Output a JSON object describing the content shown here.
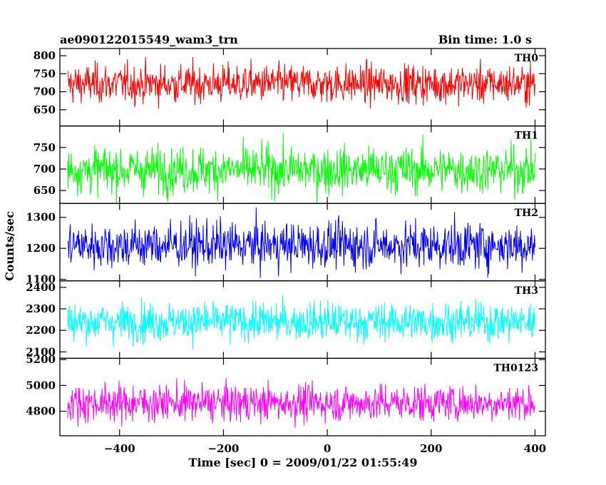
{
  "header": {
    "left": "ae090122015549_wam3_trn",
    "right": "Bin time: 1.0 s"
  },
  "chart_data": {
    "type": "line",
    "xlabel": "Time [sec] 0 = 2009/01/22 01:55:49",
    "ylabel": "Counts/sec",
    "xlim": [
      -515,
      420
    ],
    "data_range": [
      -500,
      400
    ],
    "xticks": [
      -400,
      -200,
      0,
      200,
      400
    ],
    "bin_time": 1.0,
    "panels": [
      {
        "name": "TH0",
        "color": "#ff0000",
        "ylim": [
          605,
          820
        ],
        "yticks": [
          650,
          700,
          750,
          800
        ],
        "mean": 722,
        "sd": 27
      },
      {
        "name": "TH1",
        "color": "#00ff00",
        "ylim": [
          620,
          800
        ],
        "yticks": [
          650,
          700,
          750
        ],
        "mean": 698,
        "sd": 27
      },
      {
        "name": "TH2",
        "color": "#0000ff",
        "ylim": [
          1095,
          1345
        ],
        "yticks": [
          1100,
          1200,
          1300
        ],
        "mean": 1210,
        "sd": 38
      },
      {
        "name": "TH3",
        "color": "#00ffff",
        "ylim": [
          2070,
          2430
        ],
        "yticks": [
          2100,
          2200,
          2300,
          2400
        ],
        "mean": 2240,
        "sd": 45
      },
      {
        "name": "TH0123",
        "color": "#ff00ff",
        "ylim": [
          4610,
          5210
        ],
        "yticks": [
          4800,
          5000,
          5200
        ],
        "mean": 4865,
        "sd": 72
      }
    ]
  }
}
